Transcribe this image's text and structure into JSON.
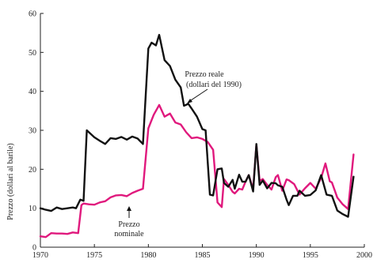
{
  "chart_data": {
    "type": "line",
    "title": "",
    "xlabel": "",
    "ylabel": "Prezzo (dollari al barile)",
    "xlim": [
      1970,
      2000
    ],
    "ylim": [
      0,
      60
    ],
    "xticks": [
      1970,
      1975,
      1980,
      1985,
      1990,
      1995,
      2000
    ],
    "yticks": [
      0,
      10,
      20,
      30,
      40,
      50,
      60
    ],
    "grid": false,
    "legend": "none",
    "series": [
      {
        "name": "Prezzo reale (dollari del 1990)",
        "color": "#111111",
        "x": [
          1970,
          1970.5,
          1971,
          1971.5,
          1972,
          1972.5,
          1973,
          1973.3,
          1973.7,
          1974,
          1974.3,
          1975,
          1975.5,
          1976,
          1976.5,
          1977,
          1977.5,
          1978,
          1978.5,
          1979,
          1979.5,
          1980,
          1980.3,
          1980.7,
          1981,
          1981.5,
          1982,
          1982.5,
          1983,
          1983.3,
          1983.7,
          1984,
          1984.5,
          1985,
          1985.3,
          1985.7,
          1986,
          1986.4,
          1986.8,
          1987,
          1987.4,
          1987.8,
          1988,
          1988.4,
          1988.7,
          1989,
          1989.3,
          1989.7,
          1990,
          1990.3,
          1990.6,
          1991,
          1991.4,
          1991.8,
          1992,
          1992.4,
          1992.8,
          1993,
          1993.4,
          1993.8,
          1994,
          1994.5,
          1995,
          1995.5,
          1996,
          1996.5,
          1997,
          1997.5,
          1998,
          1998.5,
          1999
        ],
        "y": [
          10,
          9.6,
          9.3,
          10.2,
          9.8,
          10,
          10.2,
          10,
          12.2,
          11.9,
          30,
          28.2,
          27.3,
          26.5,
          28,
          27.8,
          28.3,
          27.6,
          28.4,
          27.9,
          26.5,
          51,
          52.5,
          51.8,
          54.5,
          48,
          46.5,
          43,
          41,
          36.3,
          36.8,
          35.6,
          33.5,
          30.3,
          30,
          13.5,
          13.3,
          20,
          20.2,
          16.5,
          15.5,
          17.3,
          15,
          18.6,
          16.8,
          16.8,
          18.5,
          14.3,
          26.5,
          16,
          17.1,
          15.1,
          16.5,
          16.4,
          15.9,
          15.5,
          12.2,
          10.8,
          13.2,
          13.2,
          14.5,
          13.2,
          13.4,
          14.6,
          18.5,
          13.5,
          13.2,
          9.4,
          8.5,
          7.8,
          18.1
        ]
      },
      {
        "name": "Prezzo nominale",
        "color": "#e0197d",
        "x": [
          1970,
          1970.5,
          1971,
          1971.5,
          1972,
          1972.5,
          1973,
          1973.5,
          1973.8,
          1974,
          1974.5,
          1975,
          1975.5,
          1976,
          1976.5,
          1977,
          1977.5,
          1978,
          1978.5,
          1979,
          1979.5,
          1980,
          1980.5,
          1981,
          1981.5,
          1982,
          1982.5,
          1983,
          1983.5,
          1984,
          1984.5,
          1985,
          1985.5,
          1986,
          1986.4,
          1986.8,
          1987,
          1987.4,
          1987.8,
          1988,
          1988.4,
          1988.7,
          1989,
          1989.3,
          1989.7,
          1990,
          1990.3,
          1990.6,
          1991,
          1991.4,
          1991.8,
          1992,
          1992.4,
          1992.8,
          1993,
          1993.5,
          1994,
          1994.5,
          1995,
          1995.5,
          1996,
          1996.4,
          1996.8,
          1997,
          1997.5,
          1998,
          1998.5,
          1999
        ],
        "y": [
          2.8,
          2.6,
          3.6,
          3.5,
          3.5,
          3.4,
          3.8,
          3.6,
          10.8,
          11.2,
          11,
          10.9,
          11.5,
          11.8,
          12.8,
          13.3,
          13.4,
          13.1,
          13.9,
          14.5,
          15,
          30.5,
          34,
          36.5,
          33.5,
          34.3,
          32,
          31.5,
          29.5,
          28,
          28.2,
          27.8,
          27,
          25,
          11.5,
          10.3,
          17.5,
          16,
          14.2,
          13.8,
          15,
          14.8,
          16.8,
          18.5,
          14.9,
          26.3,
          17,
          17.5,
          16,
          14.8,
          18,
          18.5,
          14.5,
          17.4,
          17.2,
          16.2,
          13.5,
          15.1,
          16.5,
          15,
          17.8,
          21.5,
          16.9,
          16.6,
          12.7,
          11,
          9.8,
          23.8
        ]
      }
    ],
    "annotations": [
      {
        "id": "real",
        "lines": [
          "Prezzo reale",
          "(dollari del 1990)"
        ]
      },
      {
        "id": "nominal",
        "lines": [
          "Prezzo",
          "nominale"
        ]
      }
    ]
  }
}
